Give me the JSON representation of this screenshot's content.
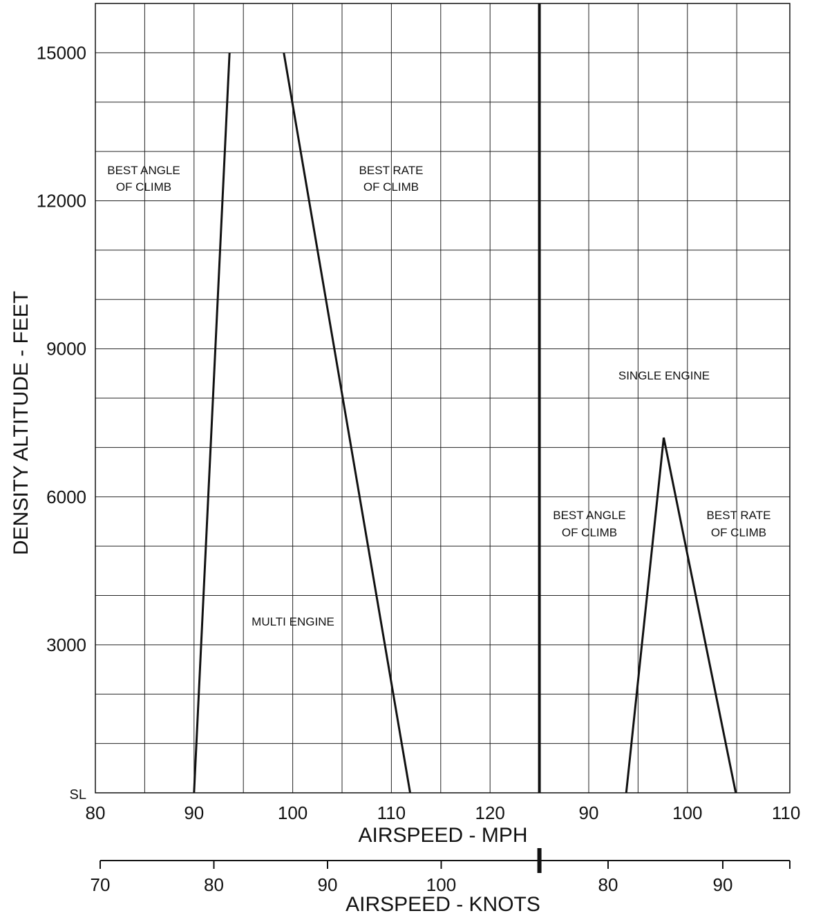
{
  "chart_data": {
    "type": "line",
    "ylabel": "DENSITY ALTITUDE - FEET",
    "xlabel": "AIRSPEED - MPH",
    "xlabel2": "AIRSPEED - KNOTS",
    "ylim": [
      0,
      16000
    ],
    "yticks": [
      "SL",
      "3000",
      "6000",
      "9000",
      "12000",
      "15000"
    ],
    "grid": true,
    "panels": [
      {
        "name": "MULTI ENGINE",
        "xlim": [
          80,
          125
        ],
        "mph_ticks": [
          "80",
          "90",
          "100",
          "110",
          "120"
        ],
        "knot_ticks": [
          "70",
          "80",
          "90",
          "100"
        ],
        "series": [
          {
            "name": "BEST ANGLE OF CLIMB",
            "points": [
              [
                90,
                0
              ],
              [
                93.6,
                15000
              ]
            ]
          },
          {
            "name": "BEST RATE OF CLIMB",
            "points": [
              [
                111.9,
                0
              ],
              [
                99.1,
                15000
              ]
            ]
          }
        ],
        "labels": [
          "BEST ANGLE",
          "OF CLIMB",
          "BEST RATE",
          "OF CLIMB",
          "MULTI ENGINE"
        ]
      },
      {
        "name": "SINGLE ENGINE",
        "xlim": [
          85,
          110
        ],
        "mph_ticks": [
          "90",
          "100",
          "110"
        ],
        "knot_ticks": [
          "80",
          "90"
        ],
        "series": [
          {
            "name": "BEST ANGLE OF CLIMB",
            "points": [
              [
                93.8,
                0
              ],
              [
                97.6,
                7200
              ]
            ]
          },
          {
            "name": "BEST RATE OF CLIMB",
            "points": [
              [
                104.9,
                0
              ],
              [
                97.6,
                7200
              ]
            ]
          }
        ],
        "labels": [
          "SINGLE ENGINE",
          "BEST ANGLE",
          "OF CLIMB",
          "BEST RATE",
          "OF CLIMB"
        ]
      }
    ]
  }
}
